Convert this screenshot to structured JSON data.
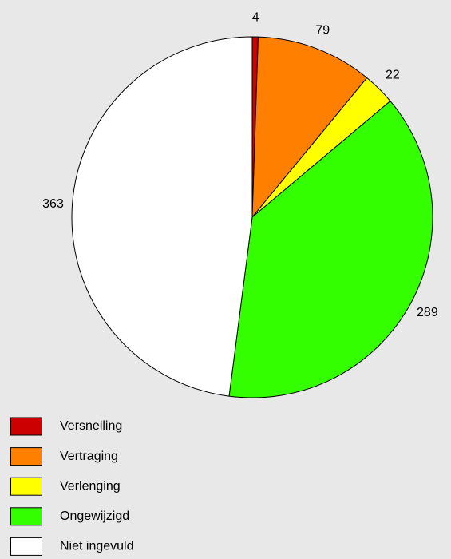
{
  "chart_data": {
    "type": "pie",
    "categories": [
      "Versnelling",
      "Vertraging",
      "Verlenging",
      "Ongewijzigd",
      "Niet ingevuld"
    ],
    "values": [
      4,
      79,
      22,
      289,
      363
    ],
    "colors": [
      "#cc0000",
      "#ff8000",
      "#ffff00",
      "#33ff00",
      "#ffffff"
    ]
  }
}
